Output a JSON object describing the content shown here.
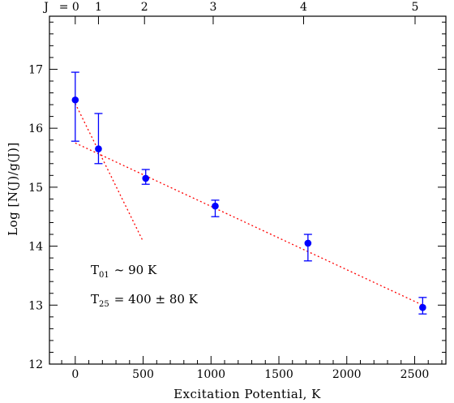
{
  "chart_data": {
    "type": "scatter",
    "xlabel": "Excitation Potential, K",
    "ylabel": "Log [N(J)/g(J)]",
    "xlim": [
      -190,
      2730
    ],
    "ylim": [
      12,
      17.9
    ],
    "x_ticks": [
      0,
      500,
      1000,
      1500,
      2000,
      2500
    ],
    "y_ticks": [
      12,
      13,
      14,
      15,
      16,
      17
    ],
    "top_axis": {
      "label": "J",
      "ticks": [
        {
          "x": 0,
          "label": "= 0"
        },
        {
          "x": 171,
          "label": "1"
        },
        {
          "x": 510,
          "label": "2"
        },
        {
          "x": 1016,
          "label": "3"
        },
        {
          "x": 1682,
          "label": "4"
        },
        {
          "x": 2503,
          "label": "5"
        }
      ]
    },
    "series": [
      {
        "points": [
          {
            "x": 0,
            "y": 16.48,
            "err_low": 15.78,
            "err_high": 16.95
          },
          {
            "x": 171,
            "y": 15.65,
            "err_low": 15.4,
            "err_high": 16.25
          },
          {
            "x": 519,
            "y": 15.15,
            "err_low": 15.05,
            "err_high": 15.3
          },
          {
            "x": 1031,
            "y": 14.68,
            "err_low": 14.5,
            "err_high": 14.78
          },
          {
            "x": 1714,
            "y": 14.05,
            "err_low": 13.75,
            "err_high": 14.2
          },
          {
            "x": 2559,
            "y": 12.96,
            "err_low": 12.85,
            "err_high": 13.13
          }
        ]
      }
    ],
    "fits": [
      {
        "x": [
          0,
          500
        ],
        "y": [
          16.42,
          14.08
        ]
      },
      {
        "x": [
          0,
          2559
        ],
        "y": [
          15.75,
          13.0
        ]
      }
    ],
    "annotations": {
      "t01_prefix": "T",
      "t01_sub": "01",
      "t01_value": "~ 90 K",
      "t25_prefix": "T",
      "t25_sub": "25",
      "t25_value": "= 400 ± 80 K"
    },
    "colors": {
      "points": "#0000ff",
      "fit": "#ff0000",
      "axes": "#000000"
    }
  }
}
